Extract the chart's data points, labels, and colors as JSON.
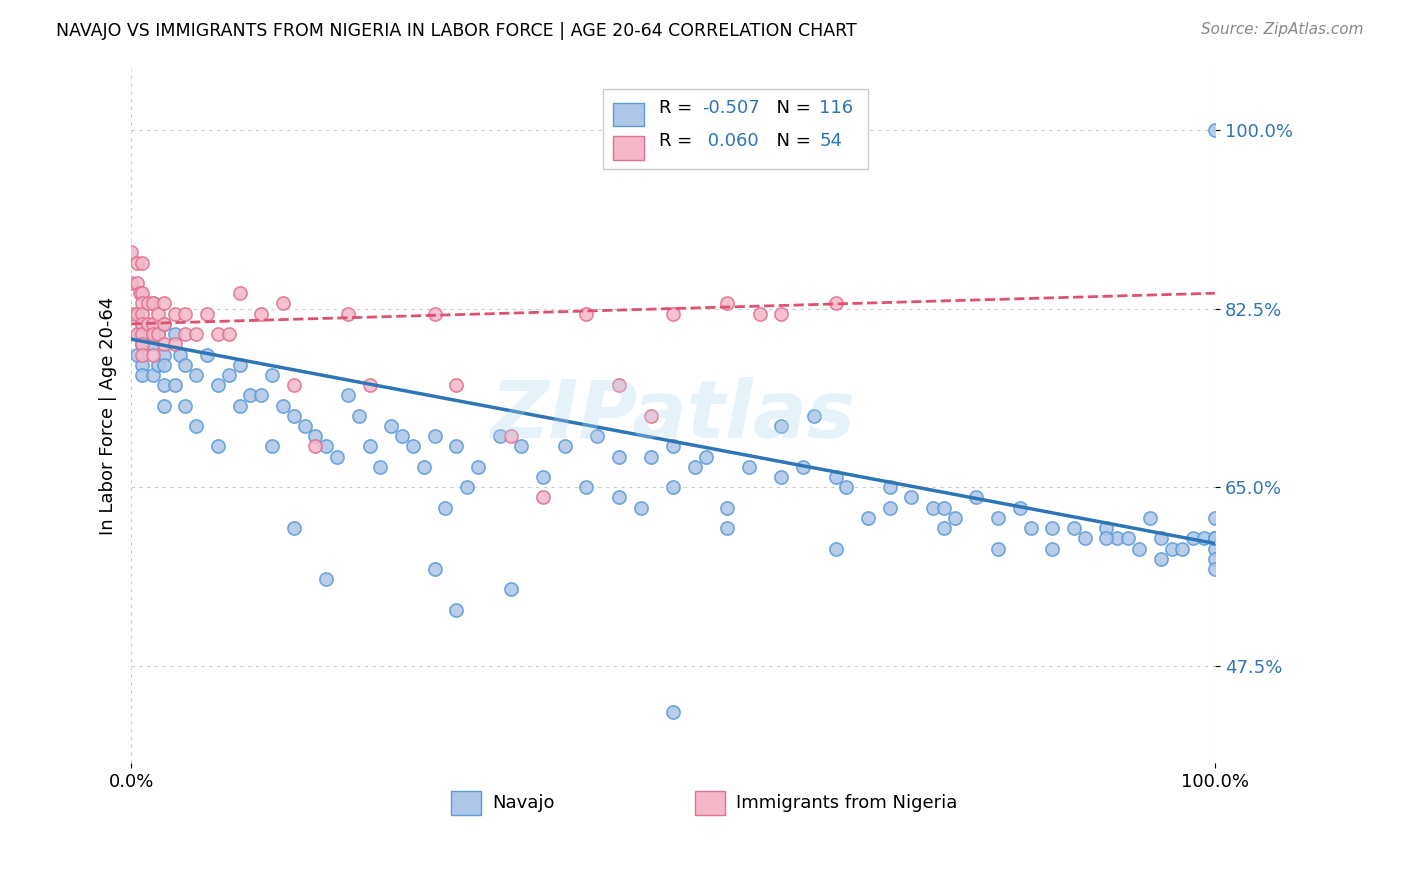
{
  "title": "NAVAJO VS IMMIGRANTS FROM NIGERIA IN LABOR FORCE | AGE 20-64 CORRELATION CHART",
  "source": "Source: ZipAtlas.com",
  "ylabel": "In Labor Force | Age 20-64",
  "navajo_color": "#aec6e8",
  "navajo_edge_color": "#5b9bd5",
  "navajo_line_color": "#2e75b6",
  "nigeria_color": "#f4b8c8",
  "nigeria_edge_color": "#e07090",
  "nigeria_line_color": "#e05070",
  "watermark": "ZIPatlas",
  "legend_label_navajo": "Navajo",
  "legend_label_nigeria": "Immigrants from Nigeria",
  "navajo_R": "-0.507",
  "navajo_N": "116",
  "nigeria_R": "0.060",
  "nigeria_N": "54",
  "xlim": [
    0.0,
    1.0
  ],
  "ylim": [
    0.38,
    1.06
  ],
  "ytick_vals": [
    0.475,
    0.65,
    0.825,
    1.0
  ],
  "ytick_labels": [
    "47.5%",
    "65.0%",
    "82.5%",
    "100.0%"
  ],
  "xtick_vals": [
    0.0,
    1.0
  ],
  "xtick_labels": [
    "0.0%",
    "100.0%"
  ],
  "navajo_x": [
    0.005,
    0.005,
    0.008,
    0.01,
    0.01,
    0.01,
    0.01,
    0.02,
    0.02,
    0.02,
    0.025,
    0.025,
    0.03,
    0.03,
    0.03,
    0.03,
    0.03,
    0.04,
    0.04,
    0.045,
    0.05,
    0.05,
    0.06,
    0.06,
    0.07,
    0.08,
    0.08,
    0.09,
    0.1,
    0.1,
    0.11,
    0.12,
    0.13,
    0.13,
    0.14,
    0.15,
    0.15,
    0.16,
    0.17,
    0.18,
    0.19,
    0.2,
    0.21,
    0.22,
    0.23,
    0.24,
    0.25,
    0.26,
    0.27,
    0.28,
    0.29,
    0.3,
    0.31,
    0.32,
    0.34,
    0.36,
    0.38,
    0.4,
    0.42,
    0.43,
    0.45,
    0.47,
    0.48,
    0.5,
    0.5,
    0.52,
    0.53,
    0.55,
    0.57,
    0.6,
    0.62,
    0.63,
    0.65,
    0.66,
    0.68,
    0.7,
    0.72,
    0.74,
    0.75,
    0.76,
    0.78,
    0.8,
    0.82,
    0.83,
    0.85,
    0.87,
    0.88,
    0.9,
    0.91,
    0.92,
    0.93,
    0.94,
    0.95,
    0.96,
    0.97,
    0.98,
    0.99,
    1.0,
    1.0,
    1.0,
    1.0,
    1.0,
    1.0,
    1.0,
    0.18,
    0.3,
    0.5,
    0.65,
    0.8,
    0.9,
    0.95,
    1.0,
    0.28,
    0.35,
    0.45,
    0.55,
    0.6,
    0.7,
    0.75,
    0.85
  ],
  "navajo_y": [
    0.78,
    0.82,
    0.8,
    0.81,
    0.79,
    0.77,
    0.76,
    0.83,
    0.79,
    0.76,
    0.8,
    0.77,
    0.81,
    0.78,
    0.77,
    0.75,
    0.73,
    0.8,
    0.75,
    0.78,
    0.77,
    0.73,
    0.76,
    0.71,
    0.78,
    0.75,
    0.69,
    0.76,
    0.77,
    0.73,
    0.74,
    0.74,
    0.76,
    0.69,
    0.73,
    0.72,
    0.61,
    0.71,
    0.7,
    0.69,
    0.68,
    0.74,
    0.72,
    0.69,
    0.67,
    0.71,
    0.7,
    0.69,
    0.67,
    0.7,
    0.63,
    0.69,
    0.65,
    0.67,
    0.7,
    0.69,
    0.66,
    0.69,
    0.65,
    0.7,
    0.64,
    0.63,
    0.68,
    0.69,
    0.65,
    0.67,
    0.68,
    0.63,
    0.67,
    0.71,
    0.67,
    0.72,
    0.66,
    0.65,
    0.62,
    0.65,
    0.64,
    0.63,
    0.63,
    0.62,
    0.64,
    0.62,
    0.63,
    0.61,
    0.61,
    0.61,
    0.6,
    0.61,
    0.6,
    0.6,
    0.59,
    0.62,
    0.6,
    0.59,
    0.59,
    0.6,
    0.6,
    0.59,
    0.58,
    0.6,
    0.62,
    0.6,
    0.6,
    0.57,
    0.56,
    0.53,
    0.43,
    0.59,
    0.59,
    0.6,
    0.58,
    1.0,
    0.57,
    0.55,
    0.68,
    0.61,
    0.66,
    0.63,
    0.61,
    0.59
  ],
  "nigeria_x": [
    0.0,
    0.0,
    0.0,
    0.005,
    0.005,
    0.005,
    0.005,
    0.008,
    0.01,
    0.01,
    0.01,
    0.01,
    0.01,
    0.01,
    0.01,
    0.01,
    0.015,
    0.015,
    0.02,
    0.02,
    0.02,
    0.02,
    0.025,
    0.025,
    0.03,
    0.03,
    0.03,
    0.04,
    0.04,
    0.05,
    0.05,
    0.06,
    0.07,
    0.08,
    0.09,
    0.1,
    0.12,
    0.14,
    0.15,
    0.17,
    0.2,
    0.22,
    0.28,
    0.3,
    0.35,
    0.38,
    0.42,
    0.45,
    0.48,
    0.5,
    0.55,
    0.58,
    0.6,
    0.65
  ],
  "nigeria_y": [
    0.88,
    0.85,
    0.82,
    0.87,
    0.85,
    0.82,
    0.8,
    0.84,
    0.87,
    0.84,
    0.83,
    0.82,
    0.81,
    0.8,
    0.79,
    0.78,
    0.83,
    0.81,
    0.83,
    0.81,
    0.8,
    0.78,
    0.82,
    0.8,
    0.83,
    0.81,
    0.79,
    0.82,
    0.79,
    0.82,
    0.8,
    0.8,
    0.82,
    0.8,
    0.8,
    0.84,
    0.82,
    0.83,
    0.75,
    0.69,
    0.82,
    0.75,
    0.82,
    0.75,
    0.7,
    0.64,
    0.82,
    0.75,
    0.72,
    0.82,
    0.83,
    0.82,
    0.82,
    0.83
  ]
}
